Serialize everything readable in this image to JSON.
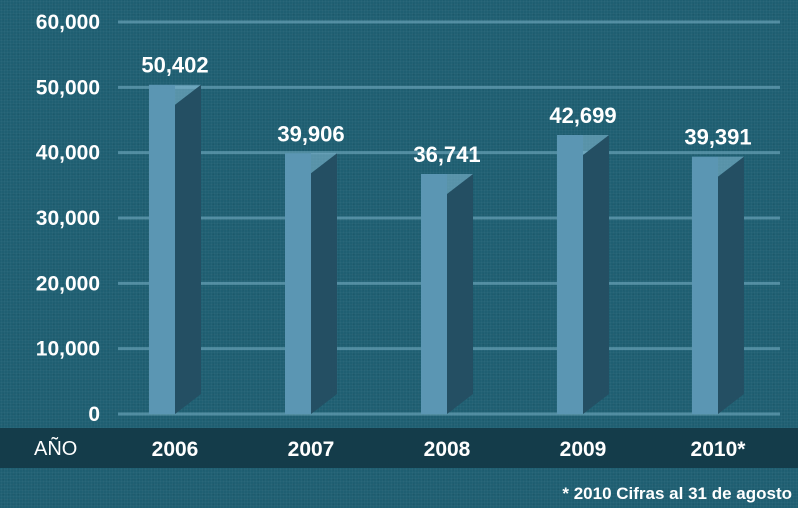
{
  "chart_data": {
    "type": "bar",
    "categories": [
      "2006",
      "2007",
      "2008",
      "2009",
      "2010*"
    ],
    "values": [
      50402,
      39906,
      36741,
      42699,
      39391
    ],
    "value_labels": [
      "50,402",
      "39,906",
      "36,741",
      "42,699",
      "39,391"
    ],
    "y_ticks": [
      0,
      10000,
      20000,
      30000,
      40000,
      50000,
      60000
    ],
    "y_tick_labels": [
      "0",
      "10,000",
      "20,000",
      "30,000",
      "40,000",
      "50,000",
      "60,000"
    ],
    "ylim": [
      0,
      60000
    ],
    "xlabel": "AÑO",
    "grid": true,
    "footnote": "* 2010 Cifras al 31 de agosto"
  },
  "colors": {
    "background": "#1f5f72",
    "bar_front": "#5b96b3",
    "bar_side": "#244f63",
    "bar_top": "#7fb6cf",
    "gridline": "#7ab3c9",
    "axis_band": "#143c4a",
    "text": "#ffffff"
  }
}
